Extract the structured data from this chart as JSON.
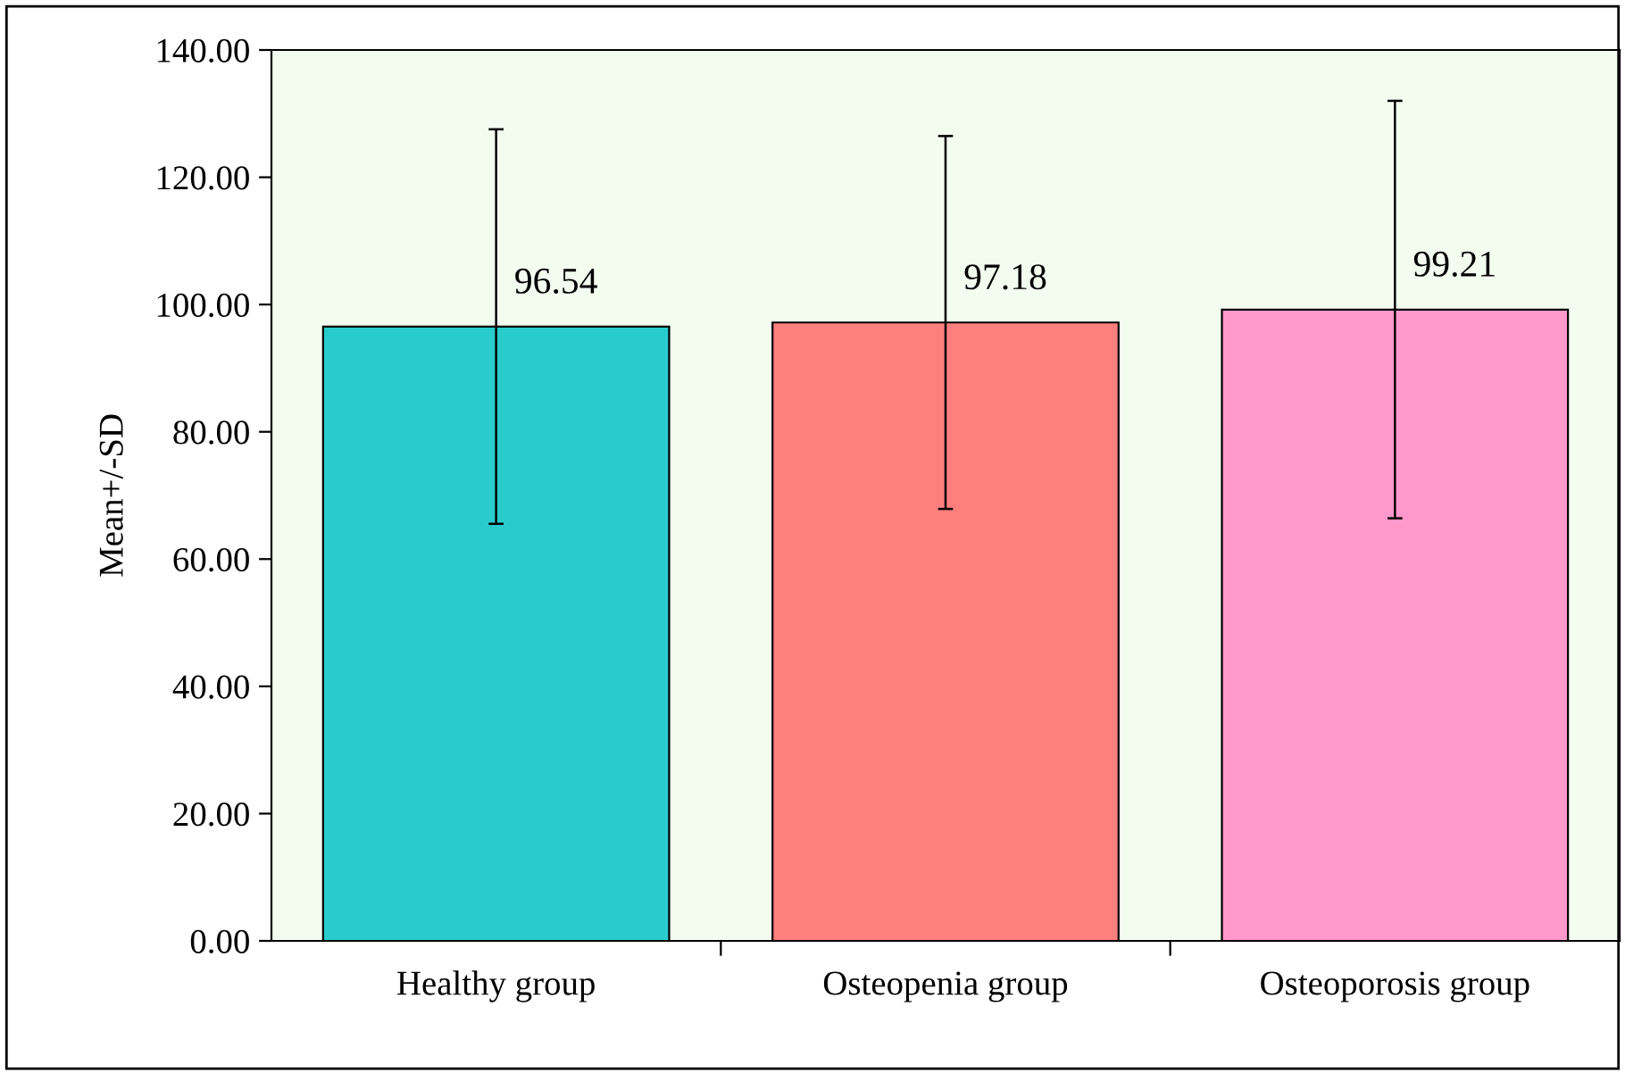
{
  "chart_data": {
    "type": "bar",
    "ylabel": "Mean+/-SD",
    "categories": [
      "Healthy group",
      "Osteopenia group",
      "Osteoporosis group"
    ],
    "values": [
      96.54,
      97.18,
      99.21
    ],
    "colors": [
      "#29cccc",
      "#ff7f7f",
      "#ff99cc"
    ],
    "errors": [
      31.0,
      29.3,
      32.8
    ],
    "data_labels": true,
    "ylim": [
      0,
      140
    ],
    "yticks": [
      {
        "value": 0,
        "label": "0.00"
      },
      {
        "value": 20,
        "label": "20.00"
      },
      {
        "value": 40,
        "label": "40.00"
      },
      {
        "value": 60,
        "label": "60.00"
      },
      {
        "value": 80,
        "label": "80.00"
      },
      {
        "value": 100,
        "label": "100.00"
      },
      {
        "value": 120,
        "label": "120.00"
      },
      {
        "value": 140,
        "label": "140.00"
      }
    ],
    "grid": false,
    "legend": false
  }
}
